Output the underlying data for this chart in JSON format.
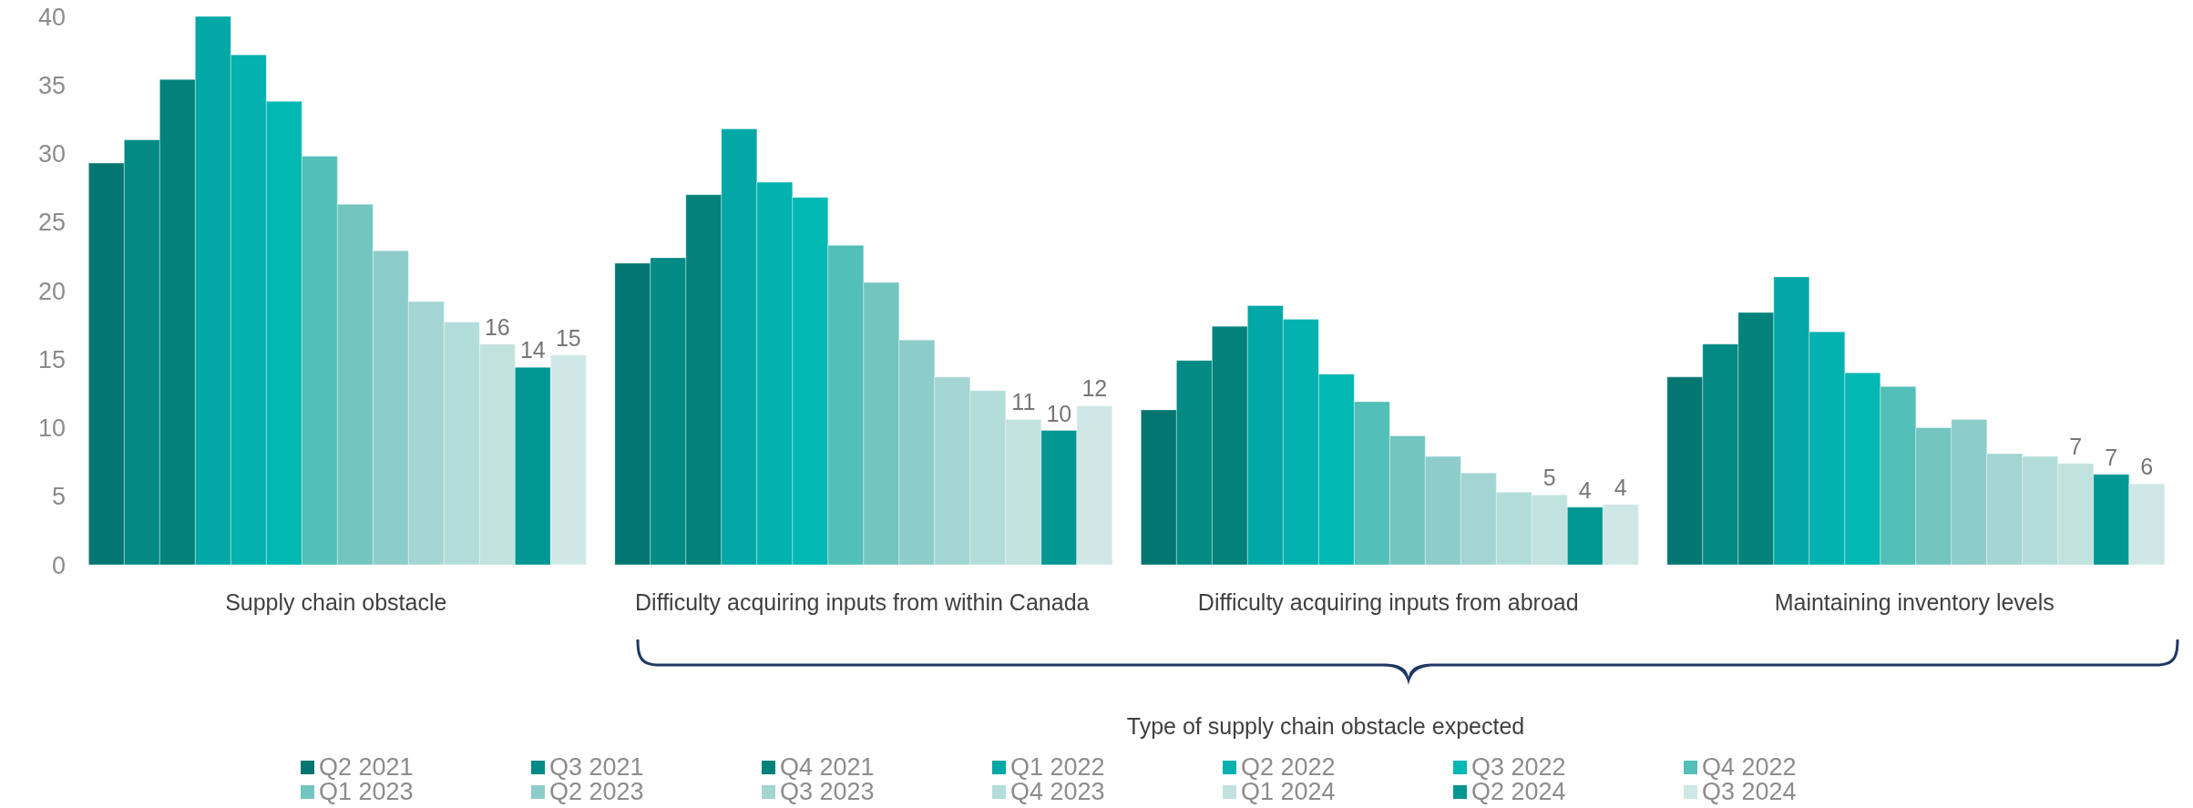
{
  "chart_data": {
    "type": "bar",
    "xlabel": "Type of supply chain obstacle expected",
    "legend": "bottom",
    "ylim": [
      0,
      40
    ],
    "yticks": [
      0,
      5,
      10,
      15,
      20,
      25,
      30,
      35,
      40
    ],
    "categories": [
      "Supply chain obstacle",
      "Difficulty acquiring inputs from within Canada",
      "Difficulty acquiring inputs from abroad",
      "Maintaining inventory levels"
    ],
    "series": [
      {
        "name": "Q2 2021",
        "color": "#037672",
        "values": [
          29.3,
          22.0,
          11.3,
          13.7
        ]
      },
      {
        "name": "Q3 2021",
        "color": "#028a85",
        "values": [
          31.0,
          22.4,
          14.9,
          16.1
        ]
      },
      {
        "name": "Q4 2021",
        "color": "#03827c",
        "values": [
          35.4,
          27.0,
          17.4,
          18.4
        ]
      },
      {
        "name": "Q1 2022",
        "color": "#02a8a5",
        "values": [
          40.0,
          31.8,
          18.9,
          21.0
        ]
      },
      {
        "name": "Q2 2022",
        "color": "#03b1ae",
        "values": [
          37.2,
          27.9,
          17.9,
          17.0
        ]
      },
      {
        "name": "Q3 2022",
        "color": "#02b8b3",
        "values": [
          33.8,
          26.8,
          13.9,
          14.0
        ]
      },
      {
        "name": "Q4 2022",
        "color": "#52bfb8",
        "values": [
          29.8,
          23.3,
          11.9,
          13.0
        ]
      },
      {
        "name": "Q1 2023",
        "color": "#73c5c0",
        "values": [
          26.3,
          20.6,
          9.4,
          10.0
        ]
      },
      {
        "name": "Q2 2023",
        "color": "#8ccdca",
        "values": [
          22.9,
          16.4,
          7.9,
          10.6
        ]
      },
      {
        "name": "Q3 2023",
        "color": "#a3d5d2",
        "values": [
          19.2,
          13.7,
          6.7,
          8.1
        ]
      },
      {
        "name": "Q4 2023",
        "color": "#b2ddda",
        "values": [
          17.7,
          12.7,
          5.3,
          7.9
        ]
      },
      {
        "name": "Q1 2024",
        "color": "#c2e2e0",
        "values": [
          16.1,
          10.6,
          5.1,
          7.4
        ],
        "value_labels": [
          "16",
          "11",
          "5",
          "7"
        ]
      },
      {
        "name": "Q2 2024",
        "color": "#009692",
        "values": [
          14.4,
          9.8,
          4.2,
          6.6
        ],
        "value_labels": [
          "14",
          "10",
          "4",
          "7"
        ]
      },
      {
        "name": "Q3 2024",
        "color": "#cfe7e6",
        "values": [
          15.3,
          11.6,
          4.4,
          5.9
        ],
        "value_labels": [
          "15",
          "12",
          "4",
          "6"
        ]
      }
    ]
  }
}
